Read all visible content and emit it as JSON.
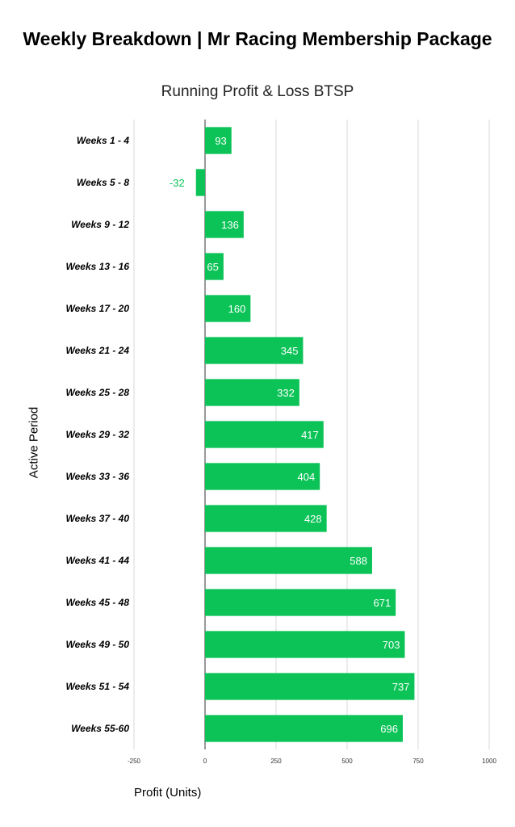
{
  "chart_data": {
    "type": "bar",
    "orientation": "horizontal",
    "title": "Weekly Breakdown | Mr Racing Membership Package",
    "subtitle": "Running Profit & Loss BTSP",
    "xlabel": "Profit (Units)",
    "ylabel": "Active Period",
    "categories": [
      "Weeks 1 - 4",
      "Weeks 5 - 8",
      "Weeks 9 - 12",
      "Weeks 13 - 16",
      "Weeks 17 - 20",
      "Weeks 21 - 24",
      "Weeks 25 - 28",
      "Weeks 29 - 32",
      "Weeks 33 - 36",
      "Weeks 37 - 40",
      "Weeks 41 - 44",
      "Weeks 45 - 48",
      "Weeks 49 - 50",
      "Weeks 51 - 54",
      "Weeks 55-60"
    ],
    "values": [
      93,
      -32,
      136,
      65,
      160,
      345,
      332,
      417,
      404,
      428,
      588,
      671,
      703,
      737,
      696
    ],
    "xlim": [
      -250,
      1000
    ],
    "xticks": [
      -250,
      0,
      250,
      500,
      750,
      1000
    ],
    "xtick_labels": [
      "-250",
      "0",
      "250",
      "500",
      "750",
      "1000"
    ],
    "grid": true,
    "legend": "none",
    "bar_color": "#0bc357",
    "label_color_inside": "#ffffff",
    "label_color_outside": "#0bc357"
  }
}
